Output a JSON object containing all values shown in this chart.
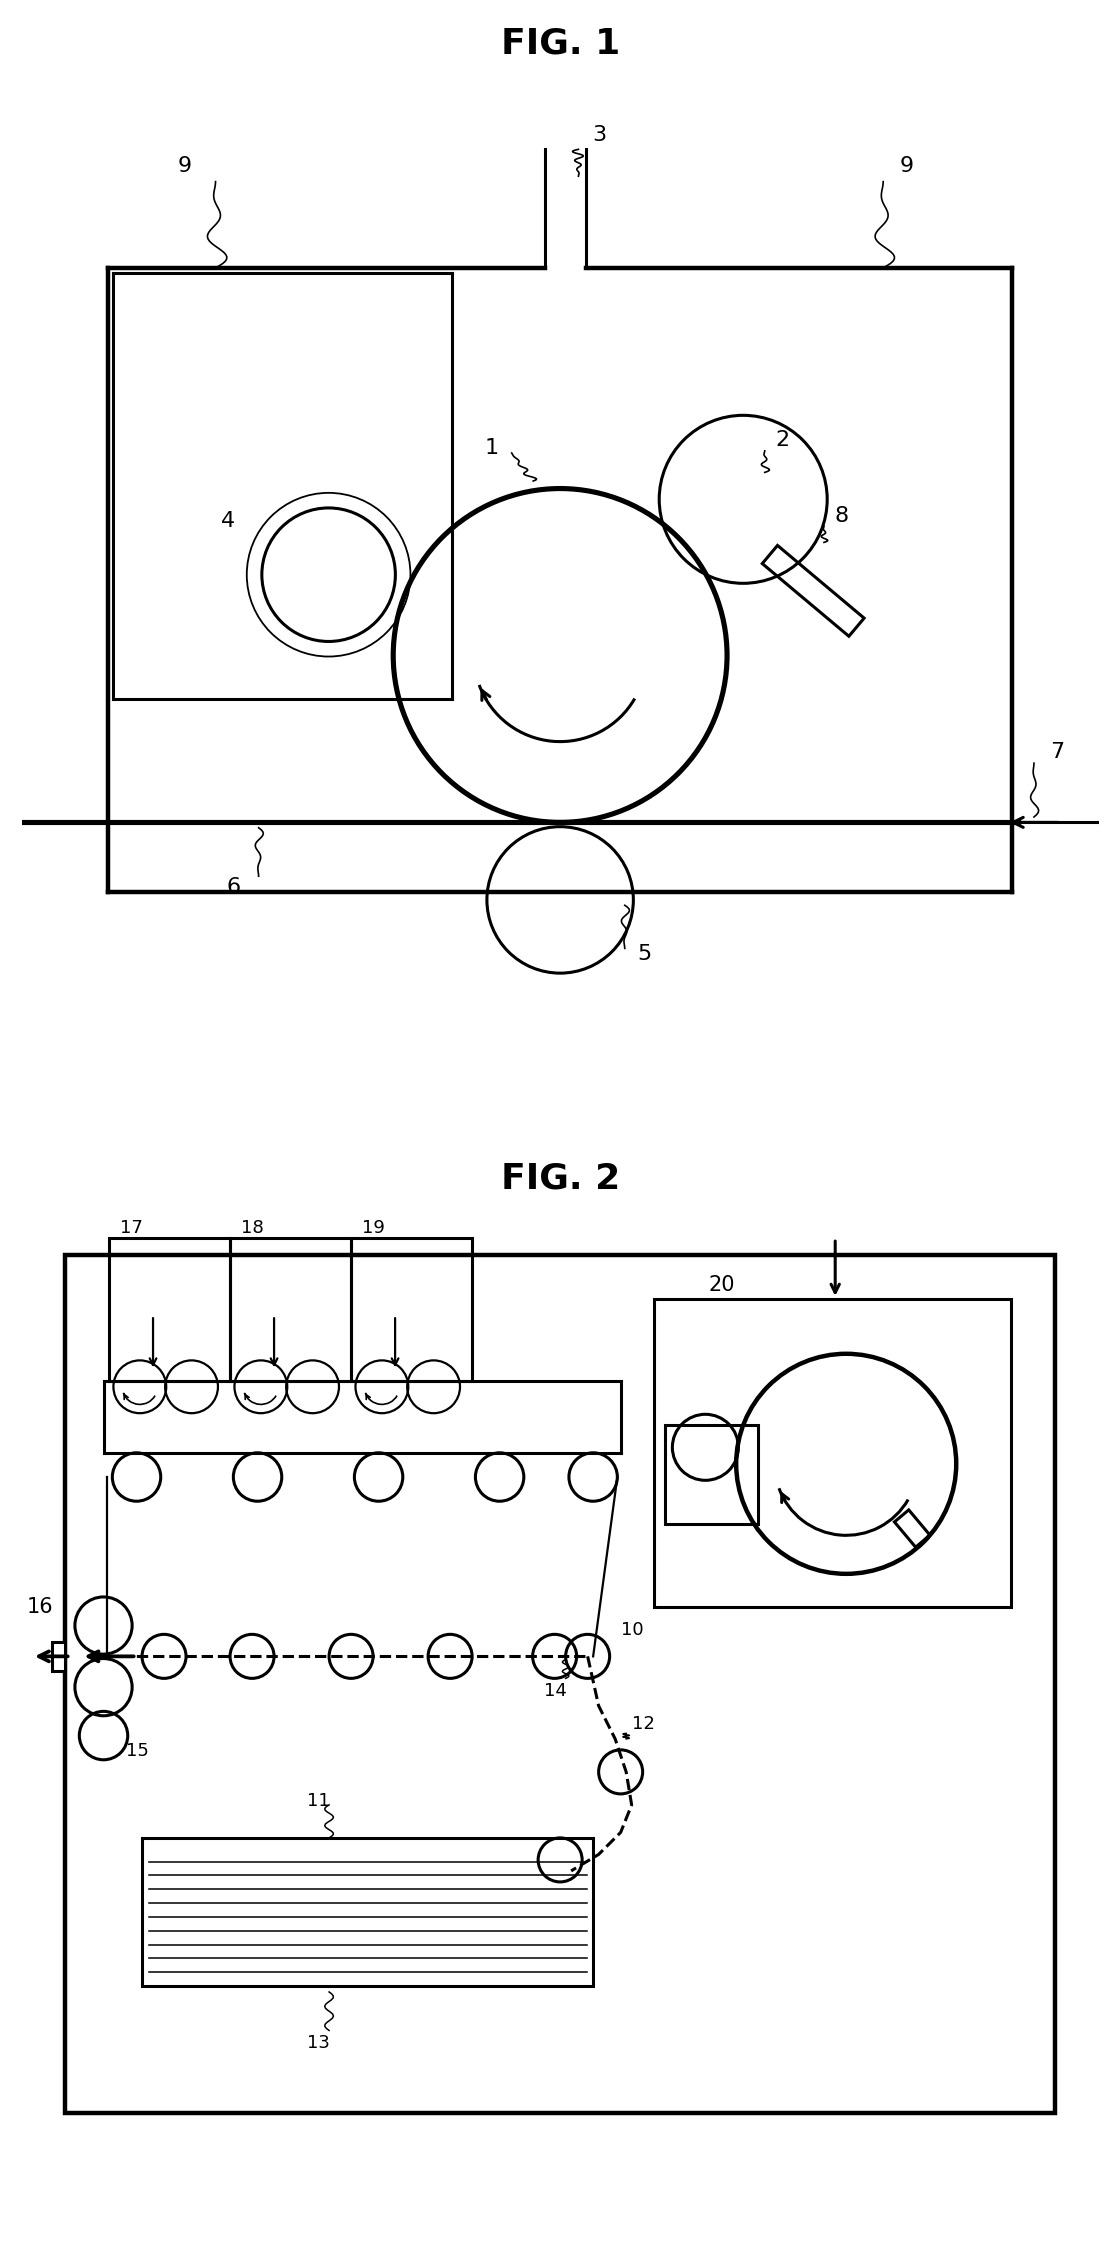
{
  "fig1_title": "FIG. 1",
  "fig2_title": "FIG. 2",
  "bg_color": "#ffffff",
  "line_color": "#000000",
  "lw": 2.2,
  "tlw": 1.6,
  "lfs": 16,
  "tfs": 26
}
